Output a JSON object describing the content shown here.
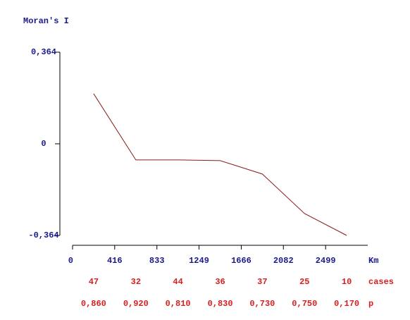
{
  "chart_data": {
    "type": "line",
    "y_label": "Moran's I",
    "x_label": "Km",
    "x": [
      208,
      625,
      1041,
      1458,
      1874,
      2291,
      2707
    ],
    "series": [
      {
        "name": "Moran's I",
        "color": "#8b1a1a",
        "values": [
          0.199,
          -0.064,
          -0.064,
          -0.067,
          -0.12,
          -0.277,
          -0.364
        ]
      }
    ],
    "xlim": [
      0,
      2915
    ],
    "xticks": [
      0,
      416,
      833,
      1249,
      1666,
      2082,
      2499
    ],
    "ylim": [
      -0.364,
      0.364
    ],
    "yticks": [
      {
        "value": -0.364,
        "label": "-0,364"
      },
      0,
      {
        "value": 0.364,
        "label": "0,364"
      }
    ],
    "cases_label": "cases",
    "cases": [
      47,
      32,
      44,
      36,
      37,
      25,
      10
    ],
    "p_label": "p",
    "p_values": [
      "0,860",
      "0,920",
      "0,810",
      "0,830",
      "0,730",
      "0,750",
      "0,170"
    ]
  }
}
